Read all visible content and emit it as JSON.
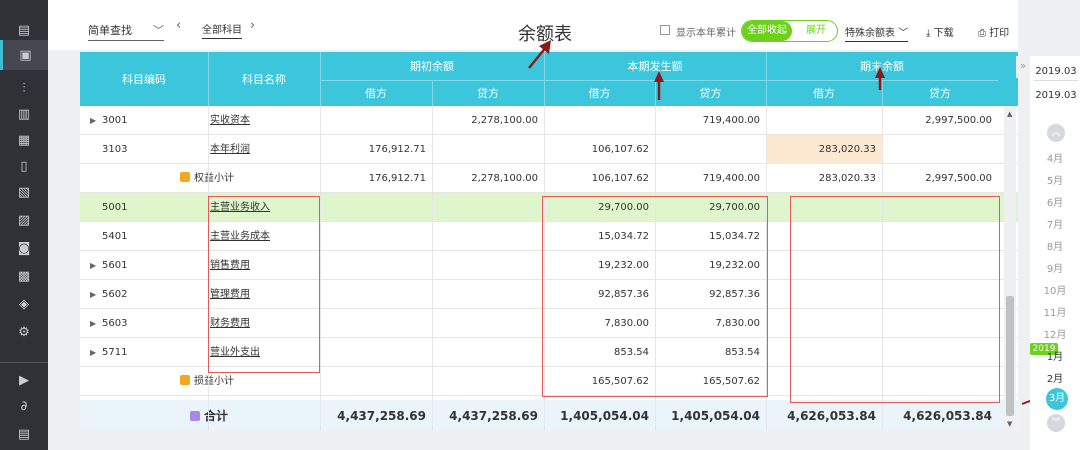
{
  "left_rail": {
    "icons": [
      "dashboard-icon",
      "voucher-icon",
      "chart-icon",
      "ledger-icon",
      "calendar-icon",
      "book-icon",
      "report-icon",
      "invoice-icon",
      "stamp-icon",
      "receipt-icon",
      "shield-icon",
      "settings-icon",
      "video-icon",
      "link-icon",
      "document-icon"
    ]
  },
  "toolbar": {
    "search_mode": "简单查找",
    "scope": "全部科目",
    "title": "余额表",
    "show_ytd_label": "显示本年累计",
    "collapse_all": "全部收起",
    "expand": "展开",
    "special_balance": "特殊余额表",
    "download": "下载",
    "print": "打印"
  },
  "table": {
    "headers": {
      "code": "科目编码",
      "name": "科目名称",
      "opening": "期初余额",
      "period": "本期发生额",
      "closing": "期末余额",
      "debit": "借方",
      "credit": "贷方"
    },
    "rows": [
      {
        "code": "3001",
        "name": "实收资本",
        "open_d": "",
        "open_c": "2,278,100.00",
        "per_d": "",
        "per_c": "719,400.00",
        "close_d": "",
        "close_c": "2,997,500.00",
        "expandable": true
      },
      {
        "code": "3103",
        "name": "本年利润",
        "open_d": "176,912.71",
        "open_c": "",
        "per_d": "106,107.62",
        "per_c": "",
        "close_d": "283,020.33",
        "close_c": "",
        "expandable": false
      },
      {
        "code": "",
        "name": "权益小计",
        "open_d": "176,912.71",
        "open_c": "2,278,100.00",
        "per_d": "106,107.62",
        "per_c": "719,400.00",
        "close_d": "283,020.33",
        "close_c": "2,997,500.00",
        "subtotal": true
      },
      {
        "code": "5001",
        "name": "主营业务收入",
        "open_d": "",
        "open_c": "",
        "per_d": "29,700.00",
        "per_c": "29,700.00",
        "close_d": "",
        "close_c": "",
        "highlight": true
      },
      {
        "code": "5401",
        "name": "主营业务成本",
        "open_d": "",
        "open_c": "",
        "per_d": "15,034.72",
        "per_c": "15,034.72",
        "close_d": "",
        "close_c": ""
      },
      {
        "code": "5601",
        "name": "销售费用",
        "open_d": "",
        "open_c": "",
        "per_d": "19,232.00",
        "per_c": "19,232.00",
        "close_d": "",
        "close_c": "",
        "expandable": true
      },
      {
        "code": "5602",
        "name": "管理费用",
        "open_d": "",
        "open_c": "",
        "per_d": "92,857.36",
        "per_c": "92,857.36",
        "close_d": "",
        "close_c": "",
        "expandable": true
      },
      {
        "code": "5603",
        "name": "财务费用",
        "open_d": "",
        "open_c": "",
        "per_d": "7,830.00",
        "per_c": "7,830.00",
        "close_d": "",
        "close_c": "",
        "expandable": true
      },
      {
        "code": "5711",
        "name": "营业外支出",
        "open_d": "",
        "open_c": "",
        "per_d": "853.54",
        "per_c": "853.54",
        "close_d": "",
        "close_c": "",
        "expandable": true
      },
      {
        "code": "",
        "name": "损益小计",
        "open_d": "",
        "open_c": "",
        "per_d": "165,507.62",
        "per_c": "165,507.62",
        "close_d": "",
        "close_c": "",
        "subtotal": true
      }
    ],
    "total": {
      "name": "合计",
      "open_d": "4,437,258.69",
      "open_c": "4,437,258.69",
      "per_d": "1,405,054.04",
      "per_c": "1,405,054.04",
      "close_d": "4,626,053.84",
      "close_c": "4,626,053.84"
    }
  },
  "period_panel": {
    "from": "2019.03",
    "to": "2019.03",
    "months": [
      "4月",
      "5月",
      "6月",
      "7月",
      "8月",
      "9月",
      "10月",
      "11月",
      "12月",
      "1月",
      "2月"
    ],
    "year_badge": "2019",
    "selected_month": "3月"
  },
  "colors": {
    "header_bg": "#3cc6db",
    "toggle_green": "#6cd11b",
    "highlight_row": "#dff5cc",
    "annotation_red": "#e25a5a",
    "arrow_dark_red": "#8b1a1a"
  }
}
